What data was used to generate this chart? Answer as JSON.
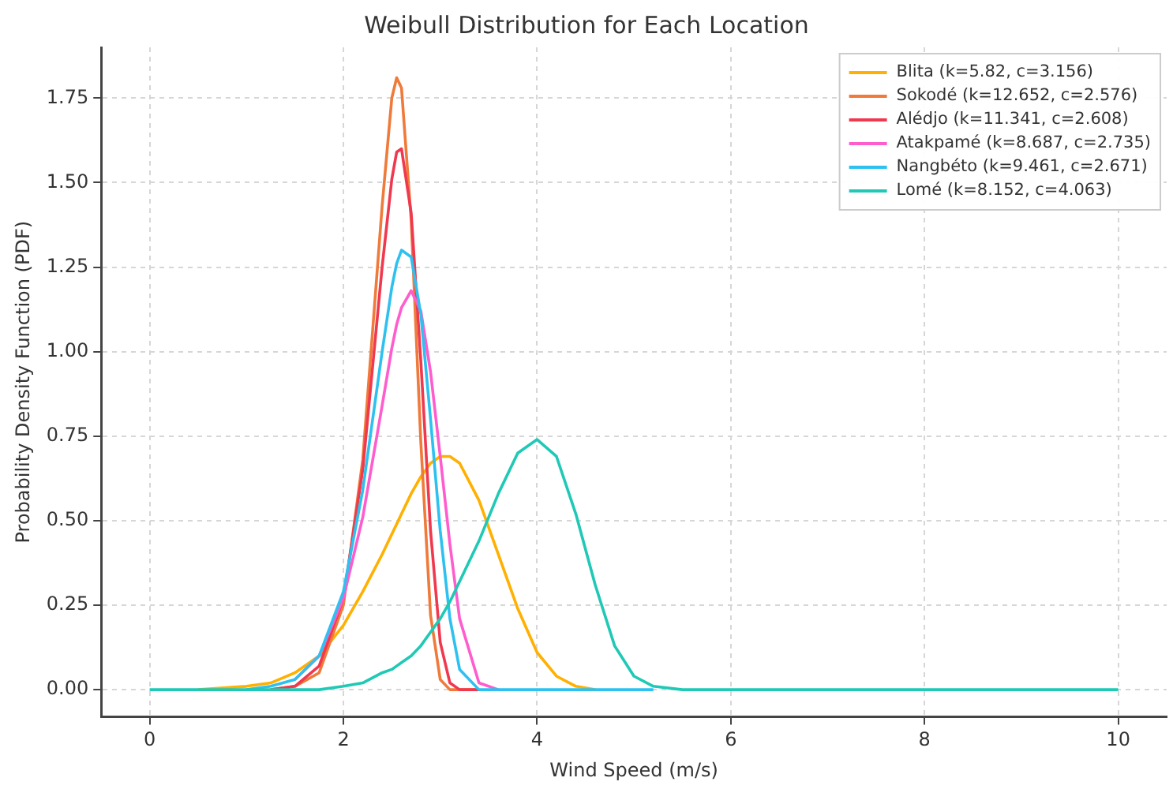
{
  "chart_data": {
    "type": "line",
    "title": "Weibull Distribution for Each Location",
    "xlabel": "Wind Speed (m/s)",
    "ylabel": "Probability Density Function (PDF)",
    "x": [
      0,
      0.5,
      1,
      1.25,
      1.5,
      1.75,
      2,
      2.2,
      2.4,
      2.5,
      2.55,
      2.6,
      2.7,
      2.8,
      2.9,
      3,
      3.1,
      3.2,
      3.4,
      3.6,
      3.8,
      4,
      4.2,
      4.4,
      4.6,
      4.8,
      5,
      5.2,
      5.5,
      6,
      7,
      8,
      9,
      10
    ],
    "series": [
      {
        "name": "Blita (k=5.82, c=3.156)",
        "color": "#ffb000",
        "values": [
          null,
          0,
          0.01,
          0.02,
          0.05,
          0.1,
          0.19,
          0.29,
          0.4,
          0.46,
          0.49,
          0.52,
          0.58,
          0.63,
          0.67,
          0.69,
          0.69,
          0.67,
          0.56,
          0.4,
          0.24,
          0.11,
          0.04,
          0.01,
          0,
          null,
          null,
          null,
          null,
          null,
          null,
          null,
          null,
          null
        ]
      },
      {
        "name": "Sokodé (k=12.652, c=2.576)",
        "color": "#ef7a3a",
        "values": [
          null,
          null,
          null,
          0,
          0.01,
          0.05,
          0.25,
          0.68,
          1.43,
          1.75,
          1.81,
          1.78,
          1.39,
          0.73,
          0.22,
          0.03,
          0,
          0,
          0,
          null,
          null,
          null,
          null,
          null,
          null,
          null,
          null,
          null,
          null,
          null,
          null,
          null,
          null,
          null
        ]
      },
      {
        "name": "Alédjo (k=11.341, c=2.608)",
        "color": "#f0394f",
        "values": [
          null,
          null,
          null,
          0,
          0.01,
          0.07,
          0.27,
          0.65,
          1.25,
          1.51,
          1.59,
          1.6,
          1.41,
          0.97,
          0.47,
          0.14,
          0.02,
          0,
          0,
          null,
          null,
          null,
          null,
          null,
          null,
          null,
          null,
          null,
          null,
          null,
          null,
          null,
          null,
          null
        ]
      },
      {
        "name": "Atakpamé (k=8.687, c=2.735)",
        "color": "#ff5ccd",
        "values": [
          null,
          null,
          null,
          null,
          0.03,
          0.1,
          0.27,
          0.51,
          0.84,
          1.01,
          1.08,
          1.13,
          1.18,
          1.12,
          0.94,
          0.69,
          0.43,
          0.21,
          0.02,
          0,
          null,
          null,
          null,
          null,
          null,
          null,
          null,
          null,
          null,
          null,
          null,
          null,
          null,
          null
        ]
      },
      {
        "name": "Nangbéto (k=9.461, c=2.671)",
        "color": "#2ec1f0",
        "values": [
          null,
          null,
          0,
          0.01,
          0.03,
          0.1,
          0.29,
          0.59,
          1.0,
          1.19,
          1.26,
          1.3,
          1.28,
          1.11,
          0.8,
          0.47,
          0.21,
          0.06,
          0,
          0,
          0,
          0,
          0,
          0,
          0,
          0,
          0,
          0,
          null,
          null,
          null,
          null,
          null,
          null
        ]
      },
      {
        "name": "Lomé (k=8.152, c=4.063)",
        "color": "#20c9b5",
        "values": [
          0,
          0,
          0,
          0,
          0,
          0,
          0.01,
          0.02,
          0.05,
          0.06,
          0.07,
          0.08,
          0.1,
          0.13,
          0.17,
          0.21,
          0.26,
          0.32,
          0.44,
          0.58,
          0.7,
          0.74,
          0.69,
          0.52,
          0.31,
          0.13,
          0.04,
          0.01,
          0,
          0,
          0,
          0,
          0,
          0
        ]
      }
    ],
    "xlim": [
      -0.5,
      10.5
    ],
    "xticks": [
      0,
      2,
      4,
      6,
      8,
      10
    ],
    "ylim": [
      -0.08,
      1.9
    ],
    "yticks": [
      {
        "value": 0,
        "label": "0.00"
      },
      {
        "value": 0.25,
        "label": "0.25"
      },
      {
        "value": 0.5,
        "label": "0.50"
      },
      {
        "value": 0.75,
        "label": "0.75"
      },
      {
        "value": 1,
        "label": "1.00"
      },
      {
        "value": 1.25,
        "label": "1.25"
      },
      {
        "value": 1.5,
        "label": "1.50"
      },
      {
        "value": 1.75,
        "label": "1.75"
      }
    ],
    "grid": true,
    "legend": "top right",
    "marker": "none",
    "line_style": "solid"
  }
}
